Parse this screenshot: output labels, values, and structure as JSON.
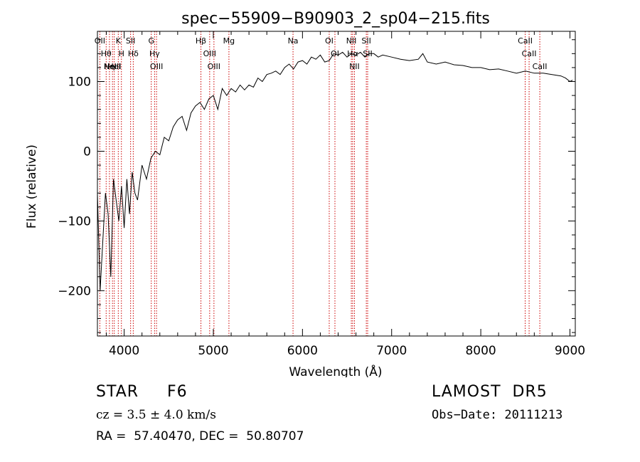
{
  "chart_data": {
    "type": "line",
    "title": "spec−55909−B90903_2_sp04−215.fits",
    "xlabel": "Wavelength (Å)",
    "ylabel": "Flux (relative)",
    "xlim": [
      3700,
      9060
    ],
    "ylim": [
      -265,
      172
    ],
    "x_ticks": [
      4000,
      5000,
      6000,
      7000,
      8000,
      9000
    ],
    "x_tick_labels": [
      "4000",
      "5000",
      "6000",
      "7000",
      "8000",
      "9000"
    ],
    "y_ticks": [
      100,
      0,
      -100,
      -200
    ],
    "y_tick_labels": [
      "100",
      "0",
      "−100",
      "−200"
    ],
    "grid": false,
    "line_color": "#000000",
    "marker_color": "#cc0000",
    "series": [
      {
        "x": [
          3700,
          3730,
          3760,
          3790,
          3820,
          3850,
          3880,
          3910,
          3940,
          3970,
          4000,
          4030,
          4060,
          4090,
          4120,
          4150,
          4200,
          4250,
          4300,
          4350,
          4400,
          4450,
          4500,
          4550,
          4600,
          4650,
          4700,
          4750,
          4800,
          4850,
          4900,
          4950,
          5000,
          5050,
          5100,
          5150,
          5200,
          5250,
          5300,
          5350,
          5400,
          5450,
          5500,
          5550,
          5600,
          5650,
          5700,
          5750,
          5800,
          5850,
          5900,
          5950,
          6000,
          6050,
          6100,
          6150,
          6200,
          6250,
          6300,
          6350,
          6400,
          6450,
          6500,
          6550,
          6600,
          6650,
          6700,
          6750,
          6800,
          6850,
          6900,
          7000,
          7100,
          7200,
          7300,
          7350,
          7400,
          7500,
          7600,
          7700,
          7800,
          7900,
          8000,
          8100,
          8200,
          8300,
          8400,
          8500,
          8600,
          8700,
          8800,
          8900,
          8950,
          9000,
          9030
        ],
        "y": [
          -60,
          -200,
          -130,
          -60,
          -90,
          -180,
          -40,
          -70,
          -100,
          -50,
          -110,
          -40,
          -90,
          -30,
          -60,
          -70,
          -20,
          -40,
          -10,
          0,
          -5,
          20,
          15,
          35,
          45,
          50,
          30,
          55,
          65,
          70,
          60,
          75,
          80,
          60,
          90,
          80,
          90,
          85,
          95,
          88,
          95,
          92,
          105,
          100,
          110,
          112,
          115,
          110,
          120,
          125,
          118,
          128,
          130,
          125,
          135,
          132,
          138,
          128,
          130,
          140,
          138,
          142,
          135,
          140,
          138,
          142,
          135,
          140,
          140,
          135,
          138,
          135,
          132,
          130,
          132,
          140,
          128,
          125,
          128,
          124,
          123,
          120,
          120,
          117,
          118,
          115,
          112,
          115,
          112,
          112,
          110,
          108,
          105,
          100,
          102
        ]
      }
    ],
    "line_markers": [
      {
        "x": 3727,
        "labels": [
          "OII"
        ]
      },
      {
        "x": 3798,
        "labels": [
          "Hθ"
        ]
      },
      {
        "x": 3835,
        "labels": [
          "Hη"
        ]
      },
      {
        "x": 3869,
        "labels": [
          "NeIII"
        ]
      },
      {
        "x": 3889,
        "labels": [
          "HeI"
        ]
      },
      {
        "x": 3934,
        "labels": [
          "K"
        ]
      },
      {
        "x": 3969,
        "labels": [
          "H"
        ]
      },
      {
        "x": 4072,
        "labels": [
          "SII"
        ]
      },
      {
        "x": 4102,
        "labels": [
          "Hδ"
        ]
      },
      {
        "x": 4304,
        "labels": [
          "G"
        ]
      },
      {
        "x": 4341,
        "labels": [
          "Hγ"
        ]
      },
      {
        "x": 4363,
        "labels": [
          "OIII"
        ]
      },
      {
        "x": 4861,
        "labels": [
          "Hβ"
        ]
      },
      {
        "x": 4959,
        "labels": [
          "OIII"
        ]
      },
      {
        "x": 5007,
        "labels": [
          "OIII"
        ]
      },
      {
        "x": 5175,
        "labels": [
          "Mg"
        ]
      },
      {
        "x": 5894,
        "labels": [
          "Na"
        ]
      },
      {
        "x": 6300,
        "labels": [
          "OI"
        ]
      },
      {
        "x": 6364,
        "labels": [
          "OI"
        ]
      },
      {
        "x": 6548,
        "labels": [
          "NII"
        ]
      },
      {
        "x": 6563,
        "labels": [
          "Hα"
        ]
      },
      {
        "x": 6583,
        "labels": [
          "NII"
        ]
      },
      {
        "x": 6716,
        "labels": [
          "SII"
        ]
      },
      {
        "x": 6731,
        "labels": [
          "SII"
        ]
      },
      {
        "x": 8498,
        "labels": [
          "CaII"
        ]
      },
      {
        "x": 8542,
        "labels": [
          "CaII"
        ]
      },
      {
        "x": 8662,
        "labels": [
          "CaII"
        ]
      }
    ]
  },
  "info": {
    "object_class": "STAR     F6",
    "cz": "cz = 3.5 ± 4.0 km/s",
    "ra_dec": "RA =  57.40470, DEC =  50.80707",
    "survey": "LAMOST  DR5",
    "obs_date": "Obs−Date: 20111213"
  }
}
